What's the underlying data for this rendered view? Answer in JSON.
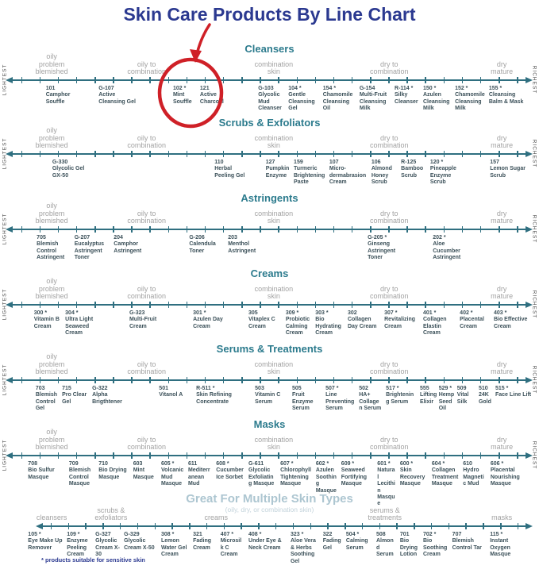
{
  "title": "Skin Care Products By Line Chart",
  "footnote": "* products suitable for sensitive skin",
  "scale_labels": {
    "left": "LIGHTEST",
    "right": "RICHEST"
  },
  "annotation": {
    "shape": "circle-with-arrow",
    "color": "#cf2027",
    "target_product": "102 * Mint Souffle"
  },
  "colors": {
    "title": "#2b3990",
    "section_header": "#2c7b8d",
    "multi_section_header": "#adc6d1",
    "category_label": "#a2a2a2",
    "axis": "#2f6f80",
    "product_text": "#3b5059",
    "annotation_red": "#cf2027",
    "footnote": "#2b3990"
  },
  "chart_data": {
    "type": "scatter",
    "title": "Skin Care Products By Line Chart",
    "x_range": [
      0,
      100
    ],
    "x_scale": [
      "LIGHTEST",
      "RICHEST"
    ],
    "categories_default": [
      {
        "x": 9.6,
        "label": "oily\nproblem\nblemished"
      },
      {
        "x": 27.2,
        "label": "oily to\ncombination"
      },
      {
        "x": 50.8,
        "label": "combination\nskin"
      },
      {
        "x": 72.2,
        "label": "dry to\ncombination"
      },
      {
        "x": 93.1,
        "label": "dry\nmature"
      }
    ],
    "sections": [
      {
        "title": "Cleansers",
        "scale": true,
        "products": [
          {
            "code": "101",
            "x": 8.5,
            "name": "Camphor Souffle"
          },
          {
            "code": "G-107",
            "x": 18.3,
            "name": "Active Cleansing Gel"
          },
          {
            "code": "102 *",
            "x": 32.1,
            "name": "Mint Souffle"
          },
          {
            "code": "121",
            "x": 37.1,
            "name": "Active Charcoal"
          },
          {
            "code": "G-103",
            "x": 47.9,
            "name": "Glycolic Mud Cleanser"
          },
          {
            "code": "104 *",
            "x": 53.5,
            "name": "Gentle Cleansing Gel"
          },
          {
            "code": "154 *",
            "x": 59.9,
            "name": "Chamomile Cleansing Oil"
          },
          {
            "code": "G-154",
            "x": 66.7,
            "name": "Multi-Fruit Cleansing Milk"
          },
          {
            "code": "R-114 *",
            "x": 73.2,
            "name": "Silky Cleanser"
          },
          {
            "code": "150 *",
            "x": 78.5,
            "name": "Azulen Cleansing Milk"
          },
          {
            "code": "152 *",
            "x": 84.4,
            "name": "Chamomile Cleansing Milk"
          },
          {
            "code": "155 *",
            "x": 90.7,
            "name": "Cleansing Balm & Mask"
          }
        ]
      },
      {
        "title": "Scrubs & Exfoliators",
        "scale": true,
        "products": [
          {
            "code": "G-330",
            "x": 9.7,
            "name": "Glycolic Gel GX-50"
          },
          {
            "code": "110",
            "x": 39.8,
            "name": "Herbal Peeling Gel"
          },
          {
            "code": "127",
            "x": 49.3,
            "name": "Pumpkin Enzyme"
          },
          {
            "code": "159",
            "x": 54.5,
            "name": "Turmeric Brightening Paste"
          },
          {
            "code": "107",
            "x": 61.1,
            "name": "Micro-dermabrasion Cream"
          },
          {
            "code": "106",
            "x": 68.9,
            "name": "Almond Honey Scrub"
          },
          {
            "code": "R-125",
            "x": 74.4,
            "name": "Bamboo Scrub"
          },
          {
            "code": "120 *",
            "x": 79.8,
            "name": "Pineapple Enzyme Scrub"
          },
          {
            "code": "157",
            "x": 90.9,
            "name": "Lemon Sugar Scrub"
          }
        ]
      },
      {
        "title": "Astringents",
        "scale": true,
        "products": [
          {
            "code": "705",
            "x": 6.8,
            "name": "Blemish Control Astringent"
          },
          {
            "code": "G-207",
            "x": 13.8,
            "name": "Eucalyptus Astringent Toner"
          },
          {
            "code": "204",
            "x": 21.1,
            "name": "Camphor Astringent"
          },
          {
            "code": "G-206",
            "x": 35.1,
            "name": "Calendula Toner"
          },
          {
            "code": "203",
            "x": 42.3,
            "name": "Menthol Astringent"
          },
          {
            "code": "G-205 *",
            "x": 68.2,
            "name": "Ginseng Astringent Toner"
          },
          {
            "code": "202 *",
            "x": 80.3,
            "name": "Aloe Cucumber Astringent"
          }
        ]
      },
      {
        "title": "Creams",
        "scale": true,
        "products": [
          {
            "code": "300 *",
            "x": 6.3,
            "name": "Vitamin B Cream"
          },
          {
            "code": "304 *",
            "x": 12.1,
            "name": "Ultra Light Seaweed Cream"
          },
          {
            "code": "G-323",
            "x": 24.0,
            "name": "Multi-Fruit Cream"
          },
          {
            "code": "301 *",
            "x": 35.8,
            "name": "Azulen Day Cream"
          },
          {
            "code": "305",
            "x": 46.1,
            "name": "Vitaplex C Cream"
          },
          {
            "code": "309 *",
            "x": 53.0,
            "name": "Probiotic Calming Cream"
          },
          {
            "code": "303 *",
            "x": 58.5,
            "name": "Bio Hydrating Cream"
          },
          {
            "code": "302",
            "x": 64.5,
            "name": "Collagen Day Cream"
          },
          {
            "code": "307 *",
            "x": 71.3,
            "name": "Revitalizing Cream"
          },
          {
            "code": "401 *",
            "x": 78.5,
            "name": "Collagen Elastin Cream"
          },
          {
            "code": "402 *",
            "x": 85.3,
            "name": "Placental Cream"
          },
          {
            "code": "403 *",
            "x": 91.6,
            "name": "Bio Effective Cream"
          }
        ]
      },
      {
        "title": "Serums & Treatments",
        "scale": true,
        "products": [
          {
            "code": "703",
            "x": 6.6,
            "name": "Blemish Control Gel"
          },
          {
            "code": "715",
            "x": 11.5,
            "name": "Pro Clear Gel"
          },
          {
            "code": "G-322",
            "x": 17.1,
            "name": "Alpha Brigthtener"
          },
          {
            "code": "501",
            "x": 29.5,
            "name": "Vitanol A"
          },
          {
            "code": "R-511 *",
            "x": 36.4,
            "name": "Skin Refining Concentrate"
          },
          {
            "code": "503",
            "x": 47.3,
            "name": "Vitamin C Serum"
          },
          {
            "code": "505",
            "x": 54.2,
            "name": "Fruit Enzyme Serum"
          },
          {
            "code": "507 *",
            "x": 60.4,
            "name": "Line Preventing Serum"
          },
          {
            "code": "502",
            "x": 66.6,
            "name": "HA+ Collagen Serum"
          },
          {
            "code": "517 *",
            "x": 71.6,
            "name": "Brightening Serum"
          },
          {
            "code": "555",
            "x": 77.9,
            "name": "Lifting Elixir"
          },
          {
            "code": "529 *",
            "x": 81.4,
            "name": "Hemp Seed Oil"
          },
          {
            "code": "509",
            "x": 84.8,
            "name": "Vital Silk"
          },
          {
            "code": "510",
            "x": 88.8,
            "name": "24K Gold"
          },
          {
            "code": "515 *",
            "x": 91.9,
            "name": "Face Line Lift"
          }
        ]
      },
      {
        "title": "Masks",
        "scale": true,
        "products": [
          {
            "code": "708",
            "x": 5.2,
            "name": "Bio Sulfur Masque"
          },
          {
            "code": "709",
            "x": 12.8,
            "name": "Blemish Control Masque"
          },
          {
            "code": "710",
            "x": 18.3,
            "name": "Bio Drying Masque"
          },
          {
            "code": "603",
            "x": 24.7,
            "name": "Mint Masque"
          },
          {
            "code": "605 *",
            "x": 29.9,
            "name": "Volcanic Mud Masque"
          },
          {
            "code": "611",
            "x": 34.9,
            "name": "Mediterranean Mud"
          },
          {
            "code": "608 *",
            "x": 40.1,
            "name": "Cucumber Ice Sorbet"
          },
          {
            "code": "G-611",
            "x": 46.1,
            "name": "Glycolic Exfoliating Masque"
          },
          {
            "code": "607 *",
            "x": 52.0,
            "name": "Chlorophyll Tightening Masque"
          },
          {
            "code": "602 *",
            "x": 58.6,
            "name": "Azulen Soothing Masque"
          },
          {
            "code": "609 *",
            "x": 63.3,
            "name": "Seaweed Fortifying Masque"
          },
          {
            "code": "601 *",
            "x": 70.0,
            "name": "Natural Lecithin Masque"
          },
          {
            "code": "600 *",
            "x": 74.2,
            "name": "Skin Recovery Masque"
          },
          {
            "code": "604 *",
            "x": 80.1,
            "name": "Collagen Treatment Masque"
          },
          {
            "code": "610",
            "x": 85.9,
            "name": "Hydro Magnetic Mud"
          },
          {
            "code": "606 *",
            "x": 91.0,
            "name": "Placental Nourishing Masque"
          }
        ]
      },
      {
        "title": "Great For Multiple Skin Types",
        "subtitle": "(oily, dry, or combination skin)",
        "scale": false,
        "categories": [
          {
            "x": 9.6,
            "label": "cleansers"
          },
          {
            "x": 20.6,
            "label": "scrubs &\nexfoliators"
          },
          {
            "x": 40.1,
            "label": "creams"
          },
          {
            "x": 71.4,
            "label": "serums &\ntreatments"
          },
          {
            "x": 93.1,
            "label": "masks"
          }
        ],
        "products": [
          {
            "code": "105 *",
            "x": 5.2,
            "name": "Eye Make Up Remover"
          },
          {
            "code": "109 *",
            "x": 12.4,
            "name": "Enzyme Peeling Cream"
          },
          {
            "code": "G-327",
            "x": 17.7,
            "name": "Glycolic Cream X-30"
          },
          {
            "code": "G-329",
            "x": 23.0,
            "name": "Glycolic Cream X-50"
          },
          {
            "code": "308 *",
            "x": 29.9,
            "name": "Lemon Water Gel Cream"
          },
          {
            "code": "321",
            "x": 35.8,
            "name": "Fading Cream"
          },
          {
            "code": "407 *",
            "x": 40.9,
            "name": "Microsilk C Cream"
          },
          {
            "code": "408 *",
            "x": 46.1,
            "name": "Under Eye & Neck Cream"
          },
          {
            "code": "323 *",
            "x": 53.9,
            "name": "Aloe Vera & Herbs Soothing Gel"
          },
          {
            "code": "322",
            "x": 59.9,
            "name": "Fading Gel"
          },
          {
            "code": "504 *",
            "x": 64.2,
            "name": "Calming Serum"
          },
          {
            "code": "508",
            "x": 69.8,
            "name": "Almond Serum"
          },
          {
            "code": "701",
            "x": 74.2,
            "name": "Bio Drying Lotion"
          },
          {
            "code": "702 *",
            "x": 78.5,
            "name": "Bio Soothing Cream"
          },
          {
            "code": "707",
            "x": 83.9,
            "name": "Blemish Control Tar"
          },
          {
            "code": "115 *",
            "x": 90.9,
            "name": "Instant Oxygen Masque"
          }
        ]
      }
    ]
  }
}
